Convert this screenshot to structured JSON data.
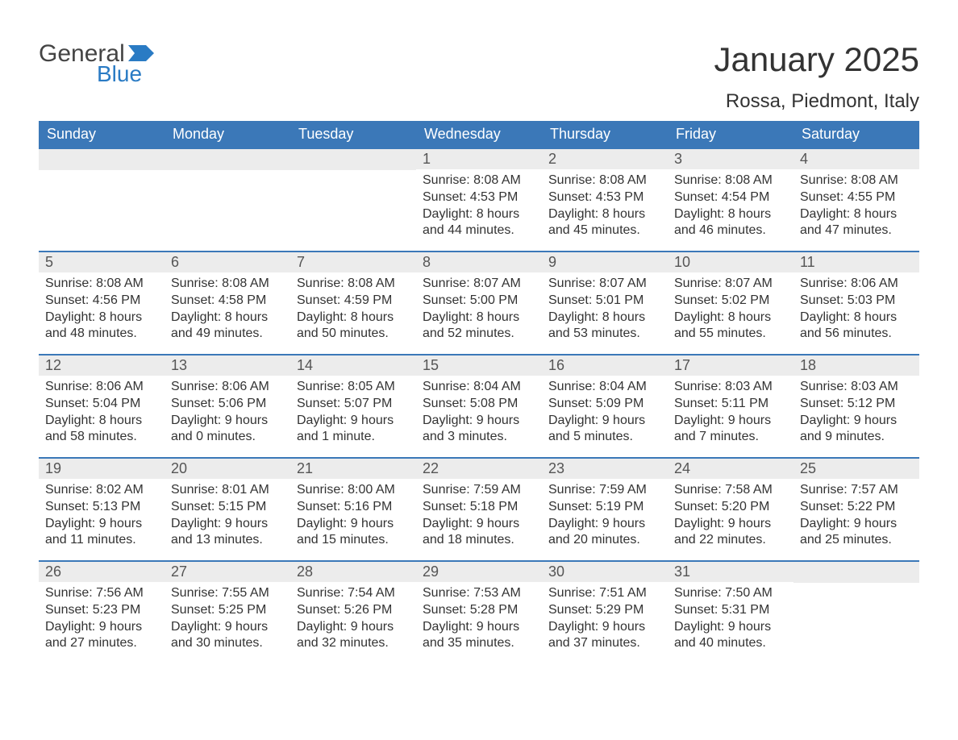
{
  "logo": {
    "general": "General",
    "blue": "Blue",
    "brand_color": "#2a7bc4"
  },
  "title": "January 2025",
  "location": "Rossa, Piedmont, Italy",
  "colors": {
    "header_bg": "#3b78b8",
    "header_text": "#ffffff",
    "daynum_bg": "#ececec",
    "text": "#333333",
    "week_border": "#3b78b8"
  },
  "day_headers": [
    "Sunday",
    "Monday",
    "Tuesday",
    "Wednesday",
    "Thursday",
    "Friday",
    "Saturday"
  ],
  "weeks": [
    [
      null,
      null,
      null,
      {
        "n": "1",
        "sunrise": "8:08 AM",
        "sunset": "4:53 PM",
        "dl1": "Daylight: 8 hours",
        "dl2": "and 44 minutes."
      },
      {
        "n": "2",
        "sunrise": "8:08 AM",
        "sunset": "4:53 PM",
        "dl1": "Daylight: 8 hours",
        "dl2": "and 45 minutes."
      },
      {
        "n": "3",
        "sunrise": "8:08 AM",
        "sunset": "4:54 PM",
        "dl1": "Daylight: 8 hours",
        "dl2": "and 46 minutes."
      },
      {
        "n": "4",
        "sunrise": "8:08 AM",
        "sunset": "4:55 PM",
        "dl1": "Daylight: 8 hours",
        "dl2": "and 47 minutes."
      }
    ],
    [
      {
        "n": "5",
        "sunrise": "8:08 AM",
        "sunset": "4:56 PM",
        "dl1": "Daylight: 8 hours",
        "dl2": "and 48 minutes."
      },
      {
        "n": "6",
        "sunrise": "8:08 AM",
        "sunset": "4:58 PM",
        "dl1": "Daylight: 8 hours",
        "dl2": "and 49 minutes."
      },
      {
        "n": "7",
        "sunrise": "8:08 AM",
        "sunset": "4:59 PM",
        "dl1": "Daylight: 8 hours",
        "dl2": "and 50 minutes."
      },
      {
        "n": "8",
        "sunrise": "8:07 AM",
        "sunset": "5:00 PM",
        "dl1": "Daylight: 8 hours",
        "dl2": "and 52 minutes."
      },
      {
        "n": "9",
        "sunrise": "8:07 AM",
        "sunset": "5:01 PM",
        "dl1": "Daylight: 8 hours",
        "dl2": "and 53 minutes."
      },
      {
        "n": "10",
        "sunrise": "8:07 AM",
        "sunset": "5:02 PM",
        "dl1": "Daylight: 8 hours",
        "dl2": "and 55 minutes."
      },
      {
        "n": "11",
        "sunrise": "8:06 AM",
        "sunset": "5:03 PM",
        "dl1": "Daylight: 8 hours",
        "dl2": "and 56 minutes."
      }
    ],
    [
      {
        "n": "12",
        "sunrise": "8:06 AM",
        "sunset": "5:04 PM",
        "dl1": "Daylight: 8 hours",
        "dl2": "and 58 minutes."
      },
      {
        "n": "13",
        "sunrise": "8:06 AM",
        "sunset": "5:06 PM",
        "dl1": "Daylight: 9 hours",
        "dl2": "and 0 minutes."
      },
      {
        "n": "14",
        "sunrise": "8:05 AM",
        "sunset": "5:07 PM",
        "dl1": "Daylight: 9 hours",
        "dl2": "and 1 minute."
      },
      {
        "n": "15",
        "sunrise": "8:04 AM",
        "sunset": "5:08 PM",
        "dl1": "Daylight: 9 hours",
        "dl2": "and 3 minutes."
      },
      {
        "n": "16",
        "sunrise": "8:04 AM",
        "sunset": "5:09 PM",
        "dl1": "Daylight: 9 hours",
        "dl2": "and 5 minutes."
      },
      {
        "n": "17",
        "sunrise": "8:03 AM",
        "sunset": "5:11 PM",
        "dl1": "Daylight: 9 hours",
        "dl2": "and 7 minutes."
      },
      {
        "n": "18",
        "sunrise": "8:03 AM",
        "sunset": "5:12 PM",
        "dl1": "Daylight: 9 hours",
        "dl2": "and 9 minutes."
      }
    ],
    [
      {
        "n": "19",
        "sunrise": "8:02 AM",
        "sunset": "5:13 PM",
        "dl1": "Daylight: 9 hours",
        "dl2": "and 11 minutes."
      },
      {
        "n": "20",
        "sunrise": "8:01 AM",
        "sunset": "5:15 PM",
        "dl1": "Daylight: 9 hours",
        "dl2": "and 13 minutes."
      },
      {
        "n": "21",
        "sunrise": "8:00 AM",
        "sunset": "5:16 PM",
        "dl1": "Daylight: 9 hours",
        "dl2": "and 15 minutes."
      },
      {
        "n": "22",
        "sunrise": "7:59 AM",
        "sunset": "5:18 PM",
        "dl1": "Daylight: 9 hours",
        "dl2": "and 18 minutes."
      },
      {
        "n": "23",
        "sunrise": "7:59 AM",
        "sunset": "5:19 PM",
        "dl1": "Daylight: 9 hours",
        "dl2": "and 20 minutes."
      },
      {
        "n": "24",
        "sunrise": "7:58 AM",
        "sunset": "5:20 PM",
        "dl1": "Daylight: 9 hours",
        "dl2": "and 22 minutes."
      },
      {
        "n": "25",
        "sunrise": "7:57 AM",
        "sunset": "5:22 PM",
        "dl1": "Daylight: 9 hours",
        "dl2": "and 25 minutes."
      }
    ],
    [
      {
        "n": "26",
        "sunrise": "7:56 AM",
        "sunset": "5:23 PM",
        "dl1": "Daylight: 9 hours",
        "dl2": "and 27 minutes."
      },
      {
        "n": "27",
        "sunrise": "7:55 AM",
        "sunset": "5:25 PM",
        "dl1": "Daylight: 9 hours",
        "dl2": "and 30 minutes."
      },
      {
        "n": "28",
        "sunrise": "7:54 AM",
        "sunset": "5:26 PM",
        "dl1": "Daylight: 9 hours",
        "dl2": "and 32 minutes."
      },
      {
        "n": "29",
        "sunrise": "7:53 AM",
        "sunset": "5:28 PM",
        "dl1": "Daylight: 9 hours",
        "dl2": "and 35 minutes."
      },
      {
        "n": "30",
        "sunrise": "7:51 AM",
        "sunset": "5:29 PM",
        "dl1": "Daylight: 9 hours",
        "dl2": "and 37 minutes."
      },
      {
        "n": "31",
        "sunrise": "7:50 AM",
        "sunset": "5:31 PM",
        "dl1": "Daylight: 9 hours",
        "dl2": "and 40 minutes."
      },
      null
    ]
  ],
  "labels": {
    "sunrise_prefix": "Sunrise: ",
    "sunset_prefix": "Sunset: "
  }
}
